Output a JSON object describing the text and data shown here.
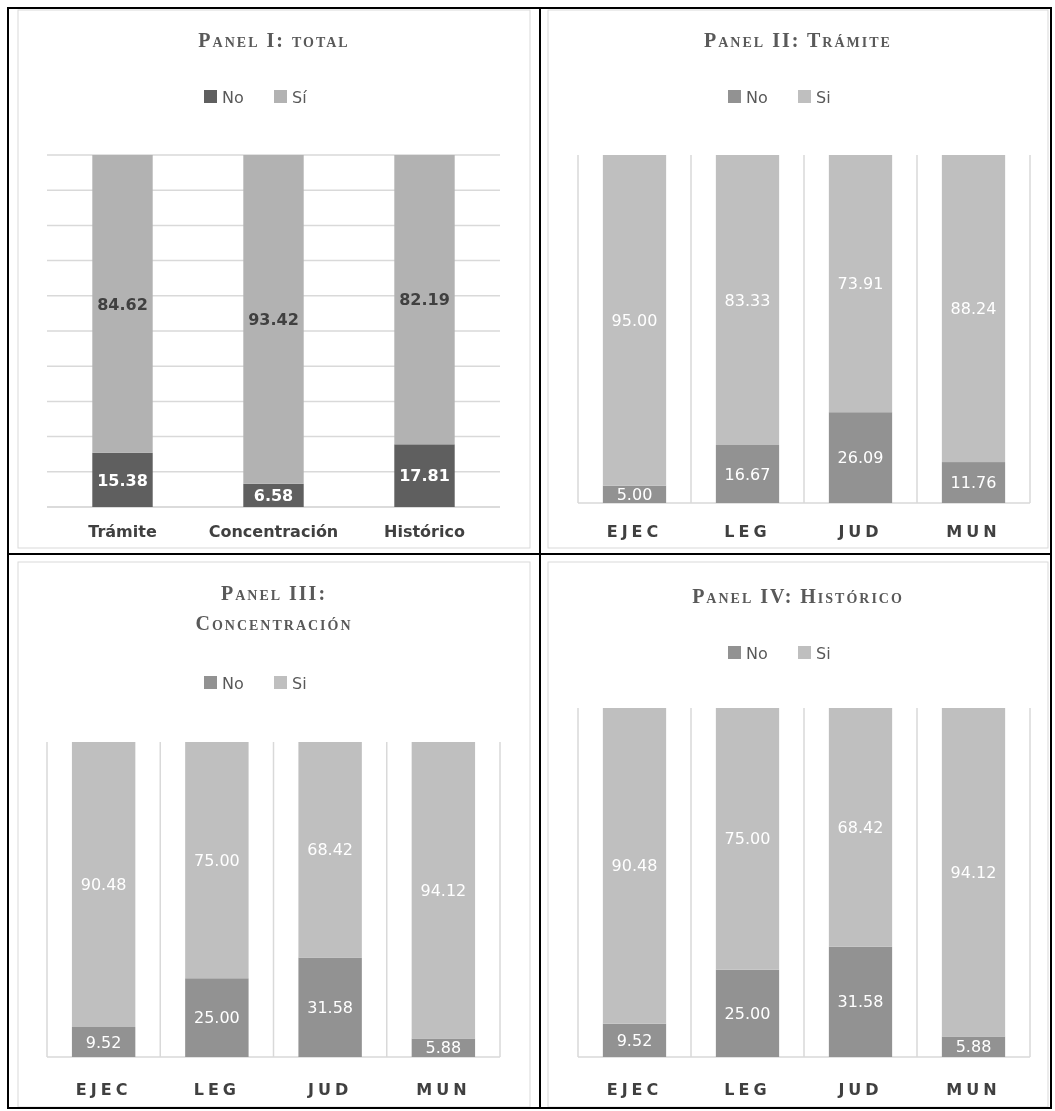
{
  "chart_data": [
    {
      "type": "bar",
      "title": "Panel I: total",
      "categories": [
        "Trámite",
        "Concentración",
        "Histórico"
      ],
      "stacked": true,
      "data_labels": true,
      "legend": "top",
      "grid": "y",
      "tick_labels": "x",
      "ylim": [
        0,
        100
      ],
      "yticks": [
        {
          "value": 0,
          "label": null
        },
        {
          "value": 10,
          "label": null
        },
        {
          "value": 20,
          "label": null
        },
        {
          "value": 30,
          "label": null
        },
        {
          "value": 40,
          "label": null
        },
        {
          "value": 50,
          "label": null
        },
        {
          "value": 60,
          "label": null
        },
        {
          "value": 70,
          "label": null
        },
        {
          "value": 80,
          "label": null
        },
        {
          "value": 90,
          "label": null
        },
        {
          "value": 100,
          "label": null
        }
      ],
      "series": [
        {
          "name": "No",
          "color": "#5f5f5f",
          "values": [
            15.38,
            6.58,
            17.81
          ]
        },
        {
          "name": "Sí",
          "color": "#b2b2b2",
          "values": [
            84.62,
            93.42,
            82.19
          ]
        }
      ]
    },
    {
      "type": "bar",
      "title": "Panel II: Trámite",
      "categories": [
        "EJEC",
        "LEG",
        "JUD",
        "MUN"
      ],
      "stacked": true,
      "legend": "top",
      "grid": "x",
      "tick_labels": "x",
      "ylim": [
        0,
        100
      ],
      "series": [
        {
          "name": "No",
          "color": "#929292",
          "values": [
            5.0,
            16.67,
            26.09,
            11.76
          ],
          "value_labels": [
            "5.00",
            "16.67",
            "26.09",
            "11.76"
          ]
        },
        {
          "name": "Si",
          "color": "#bfbfbf",
          "values": [
            95.0,
            83.33,
            73.91,
            88.24
          ],
          "value_labels": [
            "95.00",
            "83.33",
            "73.91",
            "88.24"
          ]
        }
      ]
    },
    {
      "type": "bar",
      "title": "Panel III: Concentración",
      "categories": [
        "EJEC",
        "LEG",
        "JUD",
        "MUN"
      ],
      "stacked": true,
      "legend": "top",
      "grid": "x",
      "tick_labels": "x",
      "ylim": [
        0,
        100
      ],
      "series": [
        {
          "name": "No",
          "color": "#929292",
          "values": [
            9.52,
            25.0,
            31.58,
            5.88
          ],
          "value_labels": [
            "9.52",
            "25.00",
            "31.58",
            "5.88"
          ]
        },
        {
          "name": "Si",
          "color": "#bfbfbf",
          "values": [
            90.48,
            75.0,
            68.42,
            94.12
          ],
          "value_labels": [
            "90.48",
            "75.00",
            "68.42",
            "94.12"
          ]
        }
      ]
    },
    {
      "type": "bar",
      "title": "Panel IV: Histórico",
      "categories": [
        "EJEC",
        "LEG",
        "JUD",
        "MUN"
      ],
      "stacked": true,
      "legend": "top",
      "grid": "x",
      "tick_labels": "x",
      "ylim": [
        0,
        100
      ],
      "series": [
        {
          "name": "No",
          "color": "#929292",
          "values": [
            9.52,
            25.0,
            31.58,
            5.88
          ],
          "value_labels": [
            "9.52",
            "25.00",
            "31.58",
            "5.88"
          ]
        },
        {
          "name": "Si",
          "color": "#bfbfbf",
          "values": [
            90.48,
            75.0,
            68.42,
            94.12
          ],
          "value_labels": [
            "90.48",
            "75.00",
            "68.42",
            "94.12"
          ]
        }
      ]
    }
  ]
}
